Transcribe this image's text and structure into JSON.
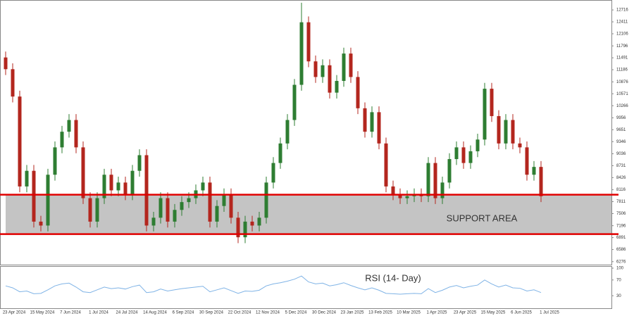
{
  "chart_data": {
    "type": "candlestick",
    "categories": [
      "23 Apr 2024",
      null,
      null,
      null,
      "15 May 2024",
      null,
      null,
      null,
      "7 Jun 2024",
      null,
      null,
      null,
      "1 Jul 2024",
      null,
      null,
      null,
      "24 Jul 2024",
      null,
      null,
      null,
      "14 Aug 2024",
      null,
      null,
      null,
      "6 Sep 2024",
      null,
      null,
      null,
      "30 Sep 2024",
      null,
      null,
      null,
      "22 Oct 2024",
      null,
      null,
      null,
      "12 Nov 2024",
      null,
      null,
      null,
      "5 Dec 2024",
      null,
      null,
      null,
      "30 Dec 2024",
      null,
      null,
      null,
      "23 Jan 2025",
      null,
      null,
      null,
      "13 Feb 2025",
      null,
      null,
      null,
      "10 Mar 2025",
      null,
      null,
      null,
      "1 Apr 2025",
      null,
      null,
      null,
      "23 Apr 2025",
      null,
      null,
      null,
      "15 May 2025",
      null,
      null,
      null,
      "6 Jun 2025",
      null,
      null,
      null,
      "1 Jul 2025"
    ],
    "candles": [
      [
        11500,
        11650,
        11050,
        11200
      ],
      [
        11200,
        11350,
        10350,
        10500
      ],
      [
        10500,
        10650,
        8050,
        8200
      ],
      [
        8200,
        8750,
        8050,
        8600
      ],
      [
        8600,
        8750,
        7150,
        7300
      ],
      [
        7300,
        7450,
        7050,
        7200
      ],
      [
        7200,
        8650,
        7050,
        8500
      ],
      [
        8500,
        9350,
        8350,
        9200
      ],
      [
        9200,
        9750,
        9050,
        9600
      ],
      [
        9600,
        10050,
        9450,
        9900
      ],
      [
        9900,
        10050,
        9050,
        9200
      ],
      [
        9200,
        9350,
        7750,
        7900
      ],
      [
        7900,
        8050,
        7150,
        7300
      ],
      [
        7300,
        8050,
        7150,
        7900
      ],
      [
        7900,
        8650,
        7750,
        8500
      ],
      [
        8500,
        8650,
        7950,
        8100
      ],
      [
        8100,
        8450,
        7950,
        8300
      ],
      [
        8300,
        8450,
        7850,
        8000
      ],
      [
        8000,
        8750,
        7850,
        8600
      ],
      [
        8600,
        9150,
        8450,
        9000
      ],
      [
        9000,
        9150,
        7050,
        7200
      ],
      [
        7200,
        7550,
        7050,
        7400
      ],
      [
        7400,
        8050,
        7250,
        7900
      ],
      [
        7900,
        8050,
        7150,
        7300
      ],
      [
        7300,
        7750,
        7150,
        7600
      ],
      [
        7600,
        7950,
        7450,
        7800
      ],
      [
        7800,
        8050,
        7650,
        7900
      ],
      [
        7900,
        8250,
        7750,
        8100
      ],
      [
        8100,
        8450,
        7950,
        8300
      ],
      [
        8300,
        8450,
        7150,
        7300
      ],
      [
        7300,
        7850,
        7150,
        7700
      ],
      [
        7700,
        8150,
        7550,
        8000
      ],
      [
        8000,
        8150,
        7250,
        7400
      ],
      [
        7400,
        7550,
        6750,
        6900
      ],
      [
        6900,
        7450,
        6750,
        7300
      ],
      [
        7300,
        7450,
        7050,
        7200
      ],
      [
        7200,
        7550,
        7050,
        7400
      ],
      [
        7400,
        8450,
        7250,
        8300
      ],
      [
        8300,
        8950,
        8150,
        8800
      ],
      [
        8800,
        9450,
        8650,
        9300
      ],
      [
        9300,
        10050,
        9150,
        9900
      ],
      [
        9900,
        10950,
        9750,
        10800
      ],
      [
        10800,
        12900,
        10650,
        12400
      ],
      [
        12400,
        12550,
        11250,
        11400
      ],
      [
        11400,
        11550,
        10850,
        11000
      ],
      [
        11000,
        11450,
        10850,
        11300
      ],
      [
        11300,
        11450,
        10450,
        10600
      ],
      [
        10600,
        11050,
        10450,
        10900
      ],
      [
        10900,
        11750,
        10750,
        11600
      ],
      [
        11600,
        11750,
        10850,
        11000
      ],
      [
        11000,
        11150,
        10050,
        10200
      ],
      [
        10200,
        10350,
        9450,
        9600
      ],
      [
        9600,
        10250,
        9450,
        10100
      ],
      [
        10100,
        10250,
        9150,
        9300
      ],
      [
        9300,
        9450,
        8050,
        8200
      ],
      [
        8200,
        8350,
        7850,
        8000
      ],
      [
        8000,
        8150,
        7750,
        7900
      ],
      [
        7900,
        8100,
        7750,
        7950
      ],
      [
        7950,
        8150,
        7800,
        8000
      ],
      [
        8000,
        8150,
        7800,
        7950
      ],
      [
        7950,
        8950,
        7800,
        8800
      ],
      [
        8800,
        8950,
        7750,
        7900
      ],
      [
        7900,
        8450,
        7750,
        8300
      ],
      [
        8300,
        9050,
        8150,
        8900
      ],
      [
        8900,
        9350,
        8750,
        9200
      ],
      [
        9200,
        9350,
        8650,
        8800
      ],
      [
        8800,
        9250,
        8650,
        9100
      ],
      [
        9100,
        9550,
        8950,
        9400
      ],
      [
        9400,
        10850,
        9250,
        10700
      ],
      [
        10700,
        10850,
        9850,
        10000
      ],
      [
        10000,
        10150,
        9150,
        9300
      ],
      [
        9300,
        10050,
        9150,
        9900
      ],
      [
        9900,
        10050,
        9150,
        9300
      ],
      [
        9300,
        9450,
        9050,
        9200
      ],
      [
        9200,
        9350,
        8350,
        8500
      ],
      [
        8500,
        8850,
        8350,
        8700
      ],
      [
        8700,
        8850,
        7800,
        7950
      ]
    ],
    "up_color": "#2e7d32",
    "down_color": "#b3261e",
    "ylim": [
      6200,
      12970
    ],
    "yticks": [
      12716,
      12411,
      12106,
      11796,
      11491,
      11186,
      10876,
      10571,
      10266,
      9956,
      9651,
      9346,
      9036,
      8731,
      8426,
      8116,
      7811,
      7506,
      7196,
      6891,
      6586,
      6276
    ],
    "support": {
      "label": "SUPPORT AREA",
      "levels": [
        7990,
        6980
      ],
      "color": "#e00000",
      "fill": "#c4c4c4"
    },
    "rsi": {
      "name": "RSI (14- Day)",
      "color": "#7fb3e6",
      "ylim": [
        0,
        100
      ],
      "yticks": [
        100,
        70,
        30
      ],
      "values": [
        55,
        50,
        40,
        42,
        35,
        36,
        45,
        55,
        60,
        62,
        52,
        40,
        38,
        45,
        52,
        48,
        50,
        47,
        53,
        57,
        38,
        40,
        47,
        42,
        45,
        48,
        50,
        52,
        54,
        40,
        45,
        50,
        43,
        36,
        42,
        41,
        44,
        55,
        60,
        63,
        67,
        72,
        80,
        65,
        60,
        62,
        55,
        58,
        63,
        56,
        50,
        45,
        50,
        44,
        36,
        35,
        34,
        35,
        36,
        35,
        48,
        38,
        44,
        52,
        56,
        50,
        54,
        57,
        70,
        60,
        52,
        57,
        50,
        49,
        42,
        45,
        38
      ]
    }
  }
}
